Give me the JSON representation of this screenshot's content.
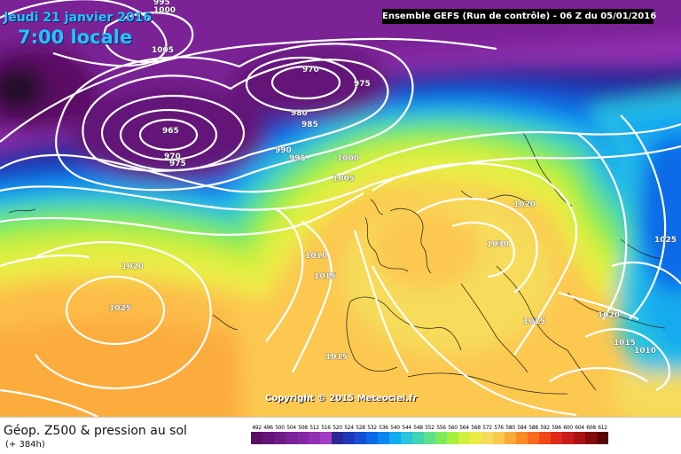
{
  "header": {
    "date": "Jeudi 21 janvier 2016",
    "time": "7:00 locale",
    "run": "Ensemble GEFS  (Run de contrôle)  -  06 Z du 05/01/2016"
  },
  "copyright": "Copyright © 2015 Meteociel.fr",
  "legend": {
    "title": "Géop. Z500 & pression au sol",
    "hours": "(+ 384h)",
    "scale": [
      {
        "label": "492",
        "color": "#5a0f64"
      },
      {
        "label": "496",
        "color": "#641478"
      },
      {
        "label": "500",
        "color": "#6e1a88"
      },
      {
        "label": "504",
        "color": "#7a2296"
      },
      {
        "label": "508",
        "color": "#8628a4"
      },
      {
        "label": "512",
        "color": "#9430b4"
      },
      {
        "label": "516",
        "color": "#a23cc4"
      },
      {
        "label": "520",
        "color": "#2a2894"
      },
      {
        "label": "524",
        "color": "#1e3ab8"
      },
      {
        "label": "528",
        "color": "#1450d4"
      },
      {
        "label": "532",
        "color": "#0a6ae8"
      },
      {
        "label": "536",
        "color": "#0a88f0"
      },
      {
        "label": "540",
        "color": "#14aaf0"
      },
      {
        "label": "544",
        "color": "#28c4e0"
      },
      {
        "label": "548",
        "color": "#40d4b4"
      },
      {
        "label": "552",
        "color": "#5ee08a"
      },
      {
        "label": "556",
        "color": "#7eea5a"
      },
      {
        "label": "560",
        "color": "#a8f03c"
      },
      {
        "label": "564",
        "color": "#d0f03c"
      },
      {
        "label": "568",
        "color": "#ecec46"
      },
      {
        "label": "572",
        "color": "#f6dc5a"
      },
      {
        "label": "576",
        "color": "#fcc850"
      },
      {
        "label": "580",
        "color": "#fcac3c"
      },
      {
        "label": "584",
        "color": "#fa8c28"
      },
      {
        "label": "588",
        "color": "#f86a1e"
      },
      {
        "label": "592",
        "color": "#f04818"
      },
      {
        "label": "596",
        "color": "#e02a18"
      },
      {
        "label": "600",
        "color": "#c81c1c"
      },
      {
        "label": "604",
        "color": "#a81414"
      },
      {
        "label": "608",
        "color": "#820c0c"
      },
      {
        "label": "612",
        "color": "#5a0606"
      }
    ]
  },
  "isobar_labels": [
    "995",
    "1000",
    "1005",
    "970",
    "975",
    "980",
    "985",
    "965",
    "970",
    "975",
    "990",
    "995",
    "1000",
    "1005",
    "1020",
    "1030",
    "1025",
    "1020",
    "1010",
    "1015",
    "1025",
    "1015",
    "1020",
    "1015",
    "1010",
    "1015"
  ]
}
